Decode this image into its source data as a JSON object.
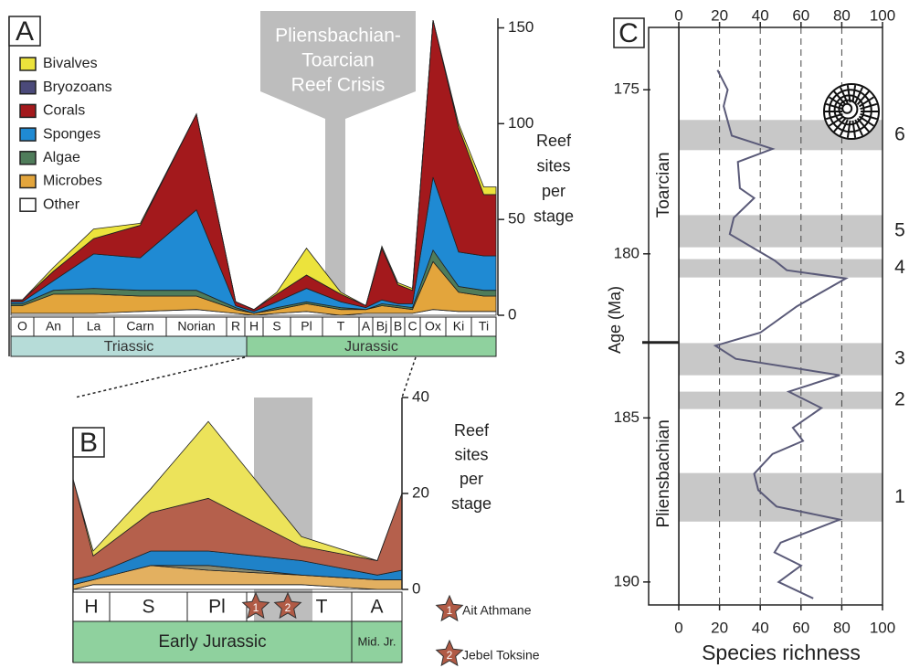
{
  "chart_data": [
    {
      "type": "stacked-area",
      "panel_label": "A",
      "annotation": [
        "Pliensbachian-",
        "Toarcian",
        "Reef Crisis"
      ],
      "categories": [
        "O",
        "An",
        "La",
        "Carn",
        "Norian",
        "R",
        "H",
        "S",
        "Pl",
        "T",
        "A",
        "Bj",
        "B",
        "C",
        "Ox",
        "Ki",
        "Ti"
      ],
      "periods": [
        "Triassic",
        "Jurassic"
      ],
      "y_label": [
        "Reef",
        "sites",
        "per",
        "stage"
      ],
      "ylim": [
        0,
        155
      ],
      "yticks": [
        0,
        50,
        100,
        150
      ],
      "legend": "top-left",
      "series": [
        {
          "name": "Bivalves",
          "color": "#ece33c",
          "values": [
            0,
            2,
            5,
            1,
            0,
            0,
            0,
            1,
            14,
            1,
            0,
            1,
            1,
            1,
            0,
            2,
            4
          ]
        },
        {
          "name": "Bryozoans",
          "color": "#4b4a7a",
          "values": [
            0,
            0,
            0,
            0,
            0,
            0,
            0,
            0,
            0,
            0,
            0,
            0,
            0,
            0,
            0,
            0,
            0
          ]
        },
        {
          "name": "Corals",
          "color": "#a3191c",
          "values": [
            1,
            5,
            8,
            17,
            50,
            2,
            1,
            4,
            7,
            4,
            1,
            27,
            10,
            7,
            82,
            65,
            32
          ]
        },
        {
          "name": "Sponges",
          "color": "#1f8ad3",
          "values": [
            1,
            5,
            18,
            17,
            42,
            1,
            1,
            3,
            7,
            3,
            1,
            2,
            1,
            2,
            38,
            18,
            18
          ]
        },
        {
          "name": "Algae",
          "color": "#4f7c5a",
          "values": [
            1,
            2,
            3,
            3,
            3,
            1,
            0,
            1,
            1,
            1,
            0,
            1,
            1,
            1,
            6,
            3,
            3
          ]
        },
        {
          "name": "Microbes",
          "color": "#e3a53c",
          "values": [
            4,
            10,
            10,
            8,
            7,
            2,
            1,
            2,
            4,
            3,
            2,
            4,
            3,
            2,
            25,
            10,
            8
          ]
        },
        {
          "name": "Other",
          "color": "#ffffff",
          "values": [
            1,
            1,
            1,
            2,
            3,
            1,
            0,
            1,
            2,
            0,
            1,
            1,
            1,
            1,
            3,
            2,
            2
          ]
        }
      ]
    },
    {
      "type": "stacked-area",
      "panel_label": "B",
      "categories": [
        null,
        "H",
        "S",
        "Pl",
        "T",
        "A",
        null
      ],
      "periods": [
        "Early Jurassic",
        "Mid. Jr."
      ],
      "y_label": [
        "Reef",
        "sites",
        "per",
        "stage"
      ],
      "ylim": [
        0,
        40
      ],
      "yticks": [
        0,
        20,
        40
      ],
      "sites": [
        {
          "number": "1",
          "name": "Ait Athmane"
        },
        {
          "number": "2",
          "name": "Jebel Toksine"
        }
      ],
      "series": [
        {
          "color": "#ece35a",
          "values": [
            0,
            1,
            5,
            16,
            2,
            0,
            0
          ]
        },
        {
          "color": "#b5604c",
          "values": [
            21,
            4,
            8,
            11,
            3,
            3,
            16
          ]
        },
        {
          "color": "#1f82c8",
          "values": [
            1,
            1,
            3,
            3,
            3,
            1,
            2
          ]
        },
        {
          "color": "#8a8a70",
          "values": [
            0,
            0,
            0,
            1,
            0,
            0,
            0
          ]
        },
        {
          "color": "#e3b060",
          "values": [
            1,
            1,
            4,
            3,
            2,
            2,
            2
          ]
        },
        {
          "color": "#ffffff",
          "values": [
            0,
            1,
            1,
            1,
            1,
            0,
            0
          ]
        }
      ]
    },
    {
      "type": "line",
      "panel_label": "C",
      "x_label": "Species richness",
      "y_label": "Age (Ma)",
      "xlim": [
        0,
        100
      ],
      "xticks": [
        0,
        20,
        40,
        60,
        80,
        100
      ],
      "ylim": [
        173.1,
        190.7
      ],
      "y_inverted": true,
      "yticks": [
        175,
        180,
        185,
        190
      ],
      "grid": "dashed",
      "color": "#5a5a78",
      "x": [
        19,
        24,
        22,
        26,
        46,
        29,
        30,
        37,
        27,
        25,
        36,
        47,
        53,
        82,
        58,
        40,
        18,
        28,
        79,
        54,
        70,
        56,
        61,
        46,
        37,
        39,
        48,
        79,
        50,
        47,
        60,
        49,
        66
      ],
      "values": [
        174.4,
        175.0,
        175.5,
        176.4,
        176.8,
        177.2,
        178.0,
        178.3,
        178.9,
        179.4,
        179.8,
        180.2,
        180.5,
        180.75,
        181.6,
        182.4,
        182.8,
        183.2,
        183.7,
        184.2,
        184.7,
        185.3,
        185.7,
        186.1,
        186.7,
        187.2,
        187.7,
        188.1,
        188.8,
        189.1,
        189.5,
        190.0,
        190.5
      ],
      "stages": [
        {
          "label": "Toarcian",
          "range": [
            173.1,
            182.7
          ]
        },
        {
          "label": "Pliensbachian",
          "range": [
            182.7,
            190.7
          ]
        }
      ],
      "bands": [
        {
          "label": "6",
          "range": [
            175.92,
            176.84
          ]
        },
        {
          "label": "5",
          "range": [
            178.82,
            179.8
          ]
        },
        {
          "label": "4",
          "range": [
            180.16,
            180.72
          ]
        },
        {
          "label": "3",
          "range": [
            182.72,
            183.7
          ]
        },
        {
          "label": "2",
          "range": [
            184.2,
            184.73
          ]
        },
        {
          "label": "1",
          "range": [
            186.68,
            188.16
          ]
        }
      ]
    }
  ]
}
